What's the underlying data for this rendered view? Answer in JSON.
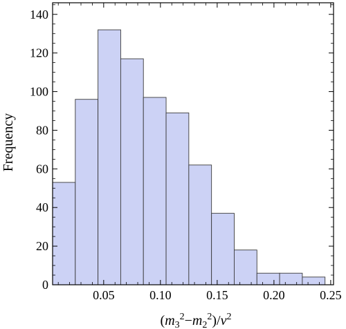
{
  "chart_data": {
    "type": "bar",
    "histogram": true,
    "title": "",
    "xlabel": "(m3^2 - m2^2)/v^2",
    "ylabel": "Frequency",
    "xlim": [
      0.005,
      0.2525
    ],
    "ylim": [
      0,
      146
    ],
    "x_ticks": [
      {
        "value": 0.05,
        "label": "0.05"
      },
      {
        "value": 0.1,
        "label": "0.10"
      },
      {
        "value": 0.15,
        "label": "0.15"
      },
      {
        "value": 0.2,
        "label": "0.20"
      },
      {
        "value": 0.25,
        "label": "0.25"
      }
    ],
    "y_ticks": [
      {
        "value": 0,
        "label": "0"
      },
      {
        "value": 20,
        "label": "20"
      },
      {
        "value": 40,
        "label": "40"
      },
      {
        "value": 60,
        "label": "60"
      },
      {
        "value": 80,
        "label": "80"
      },
      {
        "value": 100,
        "label": "100"
      },
      {
        "value": 120,
        "label": "120"
      },
      {
        "value": 140,
        "label": "140"
      }
    ],
    "bins": [
      {
        "start": 0.005,
        "end": 0.025,
        "value": 53
      },
      {
        "start": 0.025,
        "end": 0.045,
        "value": 96
      },
      {
        "start": 0.045,
        "end": 0.065,
        "value": 132
      },
      {
        "start": 0.065,
        "end": 0.085,
        "value": 117
      },
      {
        "start": 0.085,
        "end": 0.105,
        "value": 97
      },
      {
        "start": 0.105,
        "end": 0.125,
        "value": 89
      },
      {
        "start": 0.125,
        "end": 0.145,
        "value": 62
      },
      {
        "start": 0.145,
        "end": 0.165,
        "value": 37
      },
      {
        "start": 0.165,
        "end": 0.185,
        "value": 18
      },
      {
        "start": 0.185,
        "end": 0.205,
        "value": 6
      },
      {
        "start": 0.205,
        "end": 0.225,
        "value": 6
      },
      {
        "start": 0.225,
        "end": 0.245,
        "value": 4
      }
    ],
    "grid": false,
    "bar_fill": "#ccd2f5",
    "bar_stroke": "#3a3a3a",
    "frame_color": "#000000"
  }
}
